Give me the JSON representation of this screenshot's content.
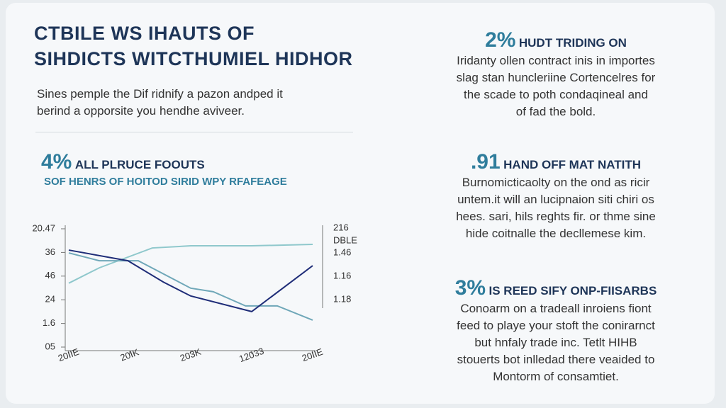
{
  "header": {
    "title_lines": [
      "CTBILE WS IHAUTS OF",
      "SIHDICTS WITCTHUMIEL HIDHOR"
    ],
    "intro_lines": [
      "Sines pemple the Dif ridnify a pazon andped it",
      "berind a opporsite you hendhe aviveer."
    ]
  },
  "stat": {
    "number": "4%",
    "label": "ALL PLRUCE FOOUTS",
    "sublabel": "SOF HENRS OF HOITOD SIRID WPY RFAFEAGE"
  },
  "chart_data": {
    "type": "line",
    "xlim": [
      0,
      4
    ],
    "xticks": [
      {
        "value": 0,
        "label": "20IIE"
      },
      {
        "value": 1,
        "label": "20IK"
      },
      {
        "value": 2,
        "label": "203K"
      },
      {
        "value": 3,
        "label": "12033"
      },
      {
        "value": 4,
        "label": "20IIE"
      }
    ],
    "ylim": [
      0,
      5
    ],
    "yticks": [
      {
        "value": 0,
        "label": "05"
      },
      {
        "value": 1,
        "label": "1.6"
      },
      {
        "value": 2,
        "label": "24"
      },
      {
        "value": 3,
        "label": "46"
      },
      {
        "value": 4,
        "label": "36"
      },
      {
        "value": 5,
        "label": "20.47"
      }
    ],
    "right_labels": [
      "216",
      "DBLE",
      "1.46",
      "1.16",
      "1.18"
    ],
    "series": [
      {
        "color": "#8fc8cc",
        "x": [
          0,
          0.5,
          1.37,
          2,
          3,
          4
        ],
        "values": [
          2.7,
          3.35,
          4.19,
          4.28,
          4.28,
          4.34
        ]
      },
      {
        "color": "#6fa7b8",
        "x": [
          0,
          0.5,
          1.14,
          2,
          2.37,
          2.9,
          3.42,
          4
        ],
        "values": [
          3.98,
          3.65,
          3.65,
          2.49,
          2.34,
          1.74,
          1.74,
          1.14
        ]
      },
      {
        "color": "#1f2d78",
        "x": [
          0,
          0.97,
          1.55,
          2,
          3,
          4
        ],
        "values": [
          4.1,
          3.65,
          2.75,
          2.16,
          1.5,
          3.44
        ]
      }
    ]
  },
  "blocks": [
    {
      "number": "2%",
      "heading": "HUDT TRIDING ON",
      "lines": [
        "Iridanty ollen contract inis in importes",
        "slag stan huncleriine Cortencelres for",
        "the scade to poth condaqineal and",
        "of fad the bold."
      ]
    },
    {
      "number": ".91",
      "heading": "HAND OFF MAT NATITH",
      "lines": [
        "Burnomicticaolty on the ond as ricir",
        "untem.it will an lucipnaion siti chiri os",
        "hees. sari, hils reghts fir. or thme sine",
        "hide coitnalle the decllemese kim."
      ]
    },
    {
      "number": "3%",
      "heading": "IS REED SIFY ONP-FIISARBS",
      "lines": [
        "Conoarm on a tradeall inroiens fiont",
        "feed to playe your stoft the conirarnct",
        "but hnfaly trade inc. Tetlt HIHB",
        "stouerts bot inlledad there veaided to",
        "Montorm of consamtiet."
      ]
    }
  ]
}
